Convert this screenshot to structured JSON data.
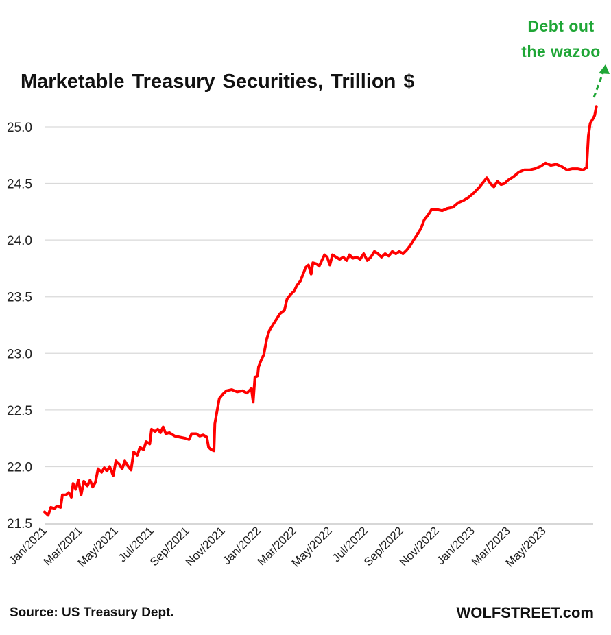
{
  "chart_data": {
    "type": "line",
    "title": "Marketable Treasury Securities, Trillion $",
    "xlabel": "",
    "ylabel": "",
    "ylim": [
      21.5,
      25.5
    ],
    "grid": true,
    "y_ticks": [
      "21.5",
      "22.0",
      "22.5",
      "23.0",
      "23.5",
      "24.0",
      "24.5",
      "25.0"
    ],
    "x_ticks": [
      "Jan/2021",
      "Mar/2021",
      "May/2021",
      "Jul/2021",
      "Sep/2021",
      "Nov/2021",
      "Jan/2022",
      "Mar/2022",
      "May/2022",
      "Jul/2022",
      "Sep/2022",
      "Nov/2022",
      "Jan/2023",
      "Mar/2023",
      "May/2023"
    ],
    "x_unit": "months since Jan 2021",
    "series": [
      {
        "name": "Marketable Treasury Securities",
        "color": "#ff0000",
        "points": [
          [
            0.0,
            21.6
          ],
          [
            0.2,
            21.57
          ],
          [
            0.35,
            21.64
          ],
          [
            0.55,
            21.63
          ],
          [
            0.7,
            21.65
          ],
          [
            0.9,
            21.64
          ],
          [
            1.0,
            21.75
          ],
          [
            1.2,
            21.75
          ],
          [
            1.35,
            21.77
          ],
          [
            1.5,
            21.73
          ],
          [
            1.6,
            21.85
          ],
          [
            1.75,
            21.8
          ],
          [
            1.9,
            21.88
          ],
          [
            2.05,
            21.75
          ],
          [
            2.2,
            21.87
          ],
          [
            2.4,
            21.83
          ],
          [
            2.55,
            21.88
          ],
          [
            2.7,
            21.82
          ],
          [
            2.85,
            21.86
          ],
          [
            3.0,
            21.98
          ],
          [
            3.2,
            21.95
          ],
          [
            3.35,
            21.99
          ],
          [
            3.5,
            21.96
          ],
          [
            3.65,
            22.0
          ],
          [
            3.85,
            21.92
          ],
          [
            4.0,
            22.05
          ],
          [
            4.2,
            22.02
          ],
          [
            4.35,
            21.98
          ],
          [
            4.5,
            22.05
          ],
          [
            4.7,
            22.0
          ],
          [
            4.85,
            21.97
          ],
          [
            5.0,
            22.13
          ],
          [
            5.2,
            22.1
          ],
          [
            5.35,
            22.17
          ],
          [
            5.55,
            22.15
          ],
          [
            5.7,
            22.22
          ],
          [
            5.9,
            22.2
          ],
          [
            6.0,
            22.33
          ],
          [
            6.2,
            22.31
          ],
          [
            6.35,
            22.33
          ],
          [
            6.5,
            22.3
          ],
          [
            6.65,
            22.35
          ],
          [
            6.8,
            22.29
          ],
          [
            7.0,
            22.3
          ],
          [
            7.3,
            22.27
          ],
          [
            7.6,
            22.26
          ],
          [
            7.9,
            22.25
          ],
          [
            8.1,
            22.24
          ],
          [
            8.25,
            22.29
          ],
          [
            8.5,
            22.29
          ],
          [
            8.7,
            22.27
          ],
          [
            8.9,
            22.28
          ],
          [
            9.1,
            22.26
          ],
          [
            9.2,
            22.17
          ],
          [
            9.35,
            22.15
          ],
          [
            9.5,
            22.14
          ],
          [
            9.55,
            22.38
          ],
          [
            9.65,
            22.47
          ],
          [
            9.8,
            22.6
          ],
          [
            10.0,
            22.64
          ],
          [
            10.2,
            22.67
          ],
          [
            10.5,
            22.68
          ],
          [
            10.8,
            22.66
          ],
          [
            11.1,
            22.67
          ],
          [
            11.35,
            22.65
          ],
          [
            11.6,
            22.69
          ],
          [
            11.7,
            22.57
          ],
          [
            11.8,
            22.79
          ],
          [
            11.95,
            22.8
          ],
          [
            12.0,
            22.88
          ],
          [
            12.15,
            22.94
          ],
          [
            12.3,
            22.99
          ],
          [
            12.45,
            23.12
          ],
          [
            12.6,
            23.2
          ],
          [
            12.8,
            23.25
          ],
          [
            13.0,
            23.3
          ],
          [
            13.2,
            23.35
          ],
          [
            13.45,
            23.38
          ],
          [
            13.6,
            23.48
          ],
          [
            13.8,
            23.52
          ],
          [
            14.0,
            23.55
          ],
          [
            14.15,
            23.6
          ],
          [
            14.35,
            23.64
          ],
          [
            14.5,
            23.7
          ],
          [
            14.65,
            23.76
          ],
          [
            14.8,
            23.78
          ],
          [
            14.95,
            23.7
          ],
          [
            15.05,
            23.8
          ],
          [
            15.25,
            23.79
          ],
          [
            15.4,
            23.77
          ],
          [
            15.55,
            23.82
          ],
          [
            15.7,
            23.87
          ],
          [
            15.85,
            23.85
          ],
          [
            16.0,
            23.78
          ],
          [
            16.15,
            23.87
          ],
          [
            16.35,
            23.85
          ],
          [
            16.55,
            23.83
          ],
          [
            16.75,
            23.85
          ],
          [
            16.95,
            23.82
          ],
          [
            17.1,
            23.87
          ],
          [
            17.3,
            23.84
          ],
          [
            17.5,
            23.85
          ],
          [
            17.7,
            23.83
          ],
          [
            17.9,
            23.88
          ],
          [
            18.1,
            23.82
          ],
          [
            18.3,
            23.85
          ],
          [
            18.5,
            23.9
          ],
          [
            18.7,
            23.88
          ],
          [
            18.9,
            23.85
          ],
          [
            19.1,
            23.88
          ],
          [
            19.3,
            23.86
          ],
          [
            19.5,
            23.9
          ],
          [
            19.7,
            23.88
          ],
          [
            19.9,
            23.9
          ],
          [
            20.1,
            23.88
          ],
          [
            20.3,
            23.91
          ],
          [
            20.5,
            23.95
          ],
          [
            20.7,
            24.0
          ],
          [
            20.9,
            24.05
          ],
          [
            21.1,
            24.1
          ],
          [
            21.3,
            24.18
          ],
          [
            21.5,
            24.22
          ],
          [
            21.7,
            24.27
          ],
          [
            22.0,
            24.27
          ],
          [
            22.3,
            24.26
          ],
          [
            22.6,
            24.28
          ],
          [
            22.9,
            24.29
          ],
          [
            23.2,
            24.33
          ],
          [
            23.5,
            24.35
          ],
          [
            23.8,
            24.38
          ],
          [
            24.1,
            24.42
          ],
          [
            24.4,
            24.47
          ],
          [
            24.6,
            24.51
          ],
          [
            24.8,
            24.55
          ],
          [
            25.0,
            24.5
          ],
          [
            25.2,
            24.47
          ],
          [
            25.4,
            24.52
          ],
          [
            25.6,
            24.49
          ],
          [
            25.8,
            24.5
          ],
          [
            26.0,
            24.53
          ],
          [
            26.3,
            24.56
          ],
          [
            26.6,
            24.6
          ],
          [
            26.9,
            24.62
          ],
          [
            27.2,
            24.62
          ],
          [
            27.5,
            24.63
          ],
          [
            27.8,
            24.65
          ],
          [
            28.1,
            24.68
          ],
          [
            28.4,
            24.66
          ],
          [
            28.7,
            24.67
          ],
          [
            29.0,
            24.65
          ],
          [
            29.3,
            24.62
          ],
          [
            29.6,
            24.63
          ],
          [
            29.9,
            24.63
          ],
          [
            30.2,
            24.62
          ],
          [
            30.4,
            24.64
          ],
          [
            30.5,
            24.92
          ],
          [
            30.6,
            25.03
          ],
          [
            30.75,
            25.07
          ],
          [
            30.85,
            25.1
          ],
          [
            30.95,
            25.18
          ]
        ]
      }
    ],
    "annotation": {
      "text_line1": "Debt out",
      "text_line2": "the wazoo",
      "color": "#1fa636"
    },
    "source": "Source: US Treasury Dept.",
    "brand": "WOLFSTREET.com"
  }
}
